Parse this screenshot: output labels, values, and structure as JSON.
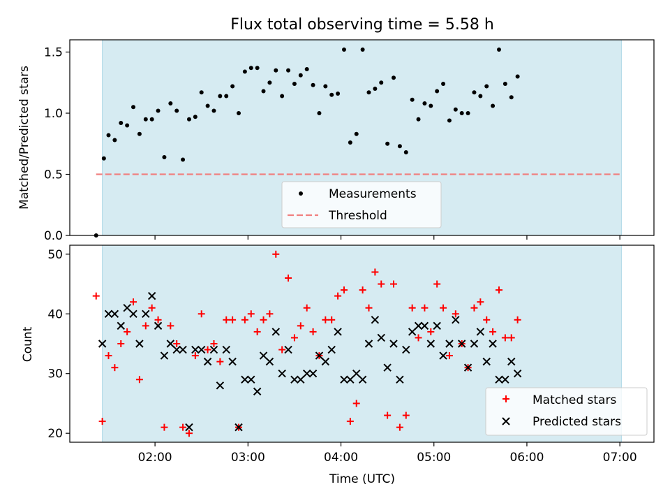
{
  "title": "Flux total observing time = 5.58 h",
  "colors": {
    "shade": "#add8e6",
    "measurement": "#000000",
    "threshold": "#f08080",
    "matched": "#ff0000",
    "predicted": "#000000"
  },
  "chart_data": [
    {
      "type": "scatter",
      "ylabel": "Matched/Predicted stars",
      "ylim": [
        0,
        1.6
      ],
      "yticks": [
        "0.0",
        "0.5",
        "1.0",
        "1.5"
      ],
      "shaded_interval": [
        "01:26",
        "07:01"
      ],
      "threshold": 0.5,
      "threshold_x_range": [
        "01:22",
        "07:00"
      ],
      "legend": {
        "position": "bottom-center",
        "entries": [
          "Measurements",
          "Threshold"
        ]
      },
      "series": [
        {
          "name": "Measurements",
          "points": [
            [
              "01:22",
              0.0
            ],
            [
              "01:27",
              0.63
            ],
            [
              "01:30",
              0.82
            ],
            [
              "01:34",
              0.78
            ],
            [
              "01:38",
              0.92
            ],
            [
              "01:42",
              0.9
            ],
            [
              "01:46",
              1.05
            ],
            [
              "01:50",
              0.83
            ],
            [
              "01:54",
              0.95
            ],
            [
              "01:58",
              0.95
            ],
            [
              "02:02",
              1.02
            ],
            [
              "02:06",
              0.64
            ],
            [
              "02:10",
              1.08
            ],
            [
              "02:14",
              1.02
            ],
            [
              "02:18",
              0.62
            ],
            [
              "02:22",
              0.95
            ],
            [
              "02:26",
              0.97
            ],
            [
              "02:30",
              1.17
            ],
            [
              "02:34",
              1.06
            ],
            [
              "02:38",
              1.02
            ],
            [
              "02:42",
              1.14
            ],
            [
              "02:46",
              1.14
            ],
            [
              "02:50",
              1.22
            ],
            [
              "02:54",
              1.0
            ],
            [
              "02:58",
              1.34
            ],
            [
              "03:02",
              1.37
            ],
            [
              "03:06",
              1.37
            ],
            [
              "03:10",
              1.18
            ],
            [
              "03:14",
              1.25
            ],
            [
              "03:18",
              1.35
            ],
            [
              "03:22",
              1.14
            ],
            [
              "03:26",
              1.35
            ],
            [
              "03:30",
              1.24
            ],
            [
              "03:34",
              1.31
            ],
            [
              "03:38",
              1.36
            ],
            [
              "03:42",
              1.23
            ],
            [
              "03:46",
              1.0
            ],
            [
              "03:50",
              1.22
            ],
            [
              "03:54",
              1.15
            ],
            [
              "03:58",
              1.16
            ],
            [
              "04:02",
              1.52
            ],
            [
              "04:06",
              0.76
            ],
            [
              "04:10",
              0.83
            ],
            [
              "04:14",
              1.52
            ],
            [
              "04:18",
              1.17
            ],
            [
              "04:22",
              1.2
            ],
            [
              "04:26",
              1.25
            ],
            [
              "04:30",
              0.75
            ],
            [
              "04:34",
              1.29
            ],
            [
              "04:38",
              0.73
            ],
            [
              "04:42",
              0.68
            ],
            [
              "04:46",
              1.11
            ],
            [
              "04:50",
              0.95
            ],
            [
              "04:54",
              1.08
            ],
            [
              "04:58",
              1.06
            ],
            [
              "05:02",
              1.18
            ],
            [
              "05:06",
              1.24
            ],
            [
              "05:10",
              0.94
            ],
            [
              "05:14",
              1.03
            ],
            [
              "05:18",
              1.0
            ],
            [
              "05:22",
              1.0
            ],
            [
              "05:26",
              1.17
            ],
            [
              "05:30",
              1.14
            ],
            [
              "05:34",
              1.22
            ],
            [
              "05:38",
              1.06
            ],
            [
              "05:42",
              1.52
            ],
            [
              "05:46",
              1.24
            ],
            [
              "05:50",
              1.13
            ],
            [
              "05:54",
              1.3
            ]
          ]
        }
      ]
    },
    {
      "type": "scatter",
      "xlabel": "Time (UTC)",
      "ylabel": "Count",
      "ylim": [
        18.5,
        51.5
      ],
      "yticks": [
        "20",
        "30",
        "40",
        "50"
      ],
      "xticks": [
        "02:00",
        "03:00",
        "04:00",
        "05:00",
        "06:00",
        "07:00"
      ],
      "shaded_interval": [
        "01:26",
        "07:01"
      ],
      "legend": {
        "position": "bottom-right",
        "entries": [
          "Matched stars",
          "Predicted stars"
        ]
      },
      "series": [
        {
          "name": "Matched stars",
          "points": [
            [
              "01:22",
              43
            ],
            [
              "01:26",
              22
            ],
            [
              "01:30",
              33
            ],
            [
              "01:34",
              31
            ],
            [
              "01:38",
              35
            ],
            [
              "01:42",
              37
            ],
            [
              "01:46",
              42
            ],
            [
              "01:50",
              29
            ],
            [
              "01:54",
              38
            ],
            [
              "01:58",
              41
            ],
            [
              "02:02",
              39
            ],
            [
              "02:06",
              21
            ],
            [
              "02:10",
              38
            ],
            [
              "02:14",
              35
            ],
            [
              "02:18",
              21
            ],
            [
              "02:22",
              20
            ],
            [
              "02:26",
              33
            ],
            [
              "02:30",
              40
            ],
            [
              "02:34",
              34
            ],
            [
              "02:38",
              35
            ],
            [
              "02:42",
              32
            ],
            [
              "02:46",
              39
            ],
            [
              "02:50",
              39
            ],
            [
              "02:54",
              21
            ],
            [
              "02:58",
              39
            ],
            [
              "03:02",
              40
            ],
            [
              "03:06",
              37
            ],
            [
              "03:10",
              39
            ],
            [
              "03:14",
              40
            ],
            [
              "03:18",
              50
            ],
            [
              "03:22",
              34
            ],
            [
              "03:26",
              46
            ],
            [
              "03:30",
              36
            ],
            [
              "03:34",
              38
            ],
            [
              "03:38",
              41
            ],
            [
              "03:42",
              37
            ],
            [
              "03:46",
              33
            ],
            [
              "03:50",
              39
            ],
            [
              "03:54",
              39
            ],
            [
              "03:58",
              43
            ],
            [
              "04:02",
              44
            ],
            [
              "04:06",
              22
            ],
            [
              "04:10",
              25
            ],
            [
              "04:14",
              44
            ],
            [
              "04:18",
              41
            ],
            [
              "04:22",
              47
            ],
            [
              "04:26",
              45
            ],
            [
              "04:30",
              23
            ],
            [
              "04:34",
              45
            ],
            [
              "04:38",
              21
            ],
            [
              "04:42",
              23
            ],
            [
              "04:46",
              41
            ],
            [
              "04:50",
              36
            ],
            [
              "04:54",
              41
            ],
            [
              "04:58",
              37
            ],
            [
              "05:02",
              45
            ],
            [
              "05:06",
              41
            ],
            [
              "05:10",
              33
            ],
            [
              "05:14",
              40
            ],
            [
              "05:18",
              35
            ],
            [
              "05:22",
              31
            ],
            [
              "05:26",
              41
            ],
            [
              "05:30",
              42
            ],
            [
              "05:34",
              39
            ],
            [
              "05:38",
              37
            ],
            [
              "05:42",
              44
            ],
            [
              "05:46",
              36
            ],
            [
              "05:50",
              36
            ],
            [
              "05:54",
              39
            ]
          ]
        },
        {
          "name": "Predicted stars",
          "points": [
            [
              "01:26",
              35
            ],
            [
              "01:30",
              40
            ],
            [
              "01:34",
              40
            ],
            [
              "01:38",
              38
            ],
            [
              "01:42",
              41
            ],
            [
              "01:46",
              40
            ],
            [
              "01:50",
              35
            ],
            [
              "01:54",
              40
            ],
            [
              "01:58",
              43
            ],
            [
              "02:02",
              38
            ],
            [
              "02:06",
              33
            ],
            [
              "02:10",
              35
            ],
            [
              "02:14",
              34
            ],
            [
              "02:18",
              34
            ],
            [
              "02:22",
              21
            ],
            [
              "02:26",
              34
            ],
            [
              "02:30",
              34
            ],
            [
              "02:34",
              32
            ],
            [
              "02:38",
              34
            ],
            [
              "02:42",
              28
            ],
            [
              "02:46",
              34
            ],
            [
              "02:50",
              32
            ],
            [
              "02:54",
              21
            ],
            [
              "02:58",
              29
            ],
            [
              "03:02",
              29
            ],
            [
              "03:06",
              27
            ],
            [
              "03:10",
              33
            ],
            [
              "03:14",
              32
            ],
            [
              "03:18",
              37
            ],
            [
              "03:22",
              30
            ],
            [
              "03:26",
              34
            ],
            [
              "03:30",
              29
            ],
            [
              "03:34",
              29
            ],
            [
              "03:38",
              30
            ],
            [
              "03:42",
              30
            ],
            [
              "03:46",
              33
            ],
            [
              "03:50",
              32
            ],
            [
              "03:54",
              34
            ],
            [
              "03:58",
              37
            ],
            [
              "04:02",
              29
            ],
            [
              "04:06",
              29
            ],
            [
              "04:10",
              30
            ],
            [
              "04:14",
              29
            ],
            [
              "04:18",
              35
            ],
            [
              "04:22",
              39
            ],
            [
              "04:26",
              36
            ],
            [
              "04:30",
              31
            ],
            [
              "04:34",
              35
            ],
            [
              "04:38",
              29
            ],
            [
              "04:42",
              34
            ],
            [
              "04:46",
              37
            ],
            [
              "04:50",
              38
            ],
            [
              "04:54",
              38
            ],
            [
              "04:58",
              35
            ],
            [
              "05:02",
              38
            ],
            [
              "05:06",
              33
            ],
            [
              "05:10",
              35
            ],
            [
              "05:14",
              39
            ],
            [
              "05:18",
              35
            ],
            [
              "05:22",
              31
            ],
            [
              "05:26",
              35
            ],
            [
              "05:30",
              37
            ],
            [
              "05:34",
              32
            ],
            [
              "05:38",
              35
            ],
            [
              "05:42",
              29
            ],
            [
              "05:46",
              29
            ],
            [
              "05:50",
              32
            ],
            [
              "05:54",
              30
            ]
          ]
        }
      ]
    }
  ]
}
